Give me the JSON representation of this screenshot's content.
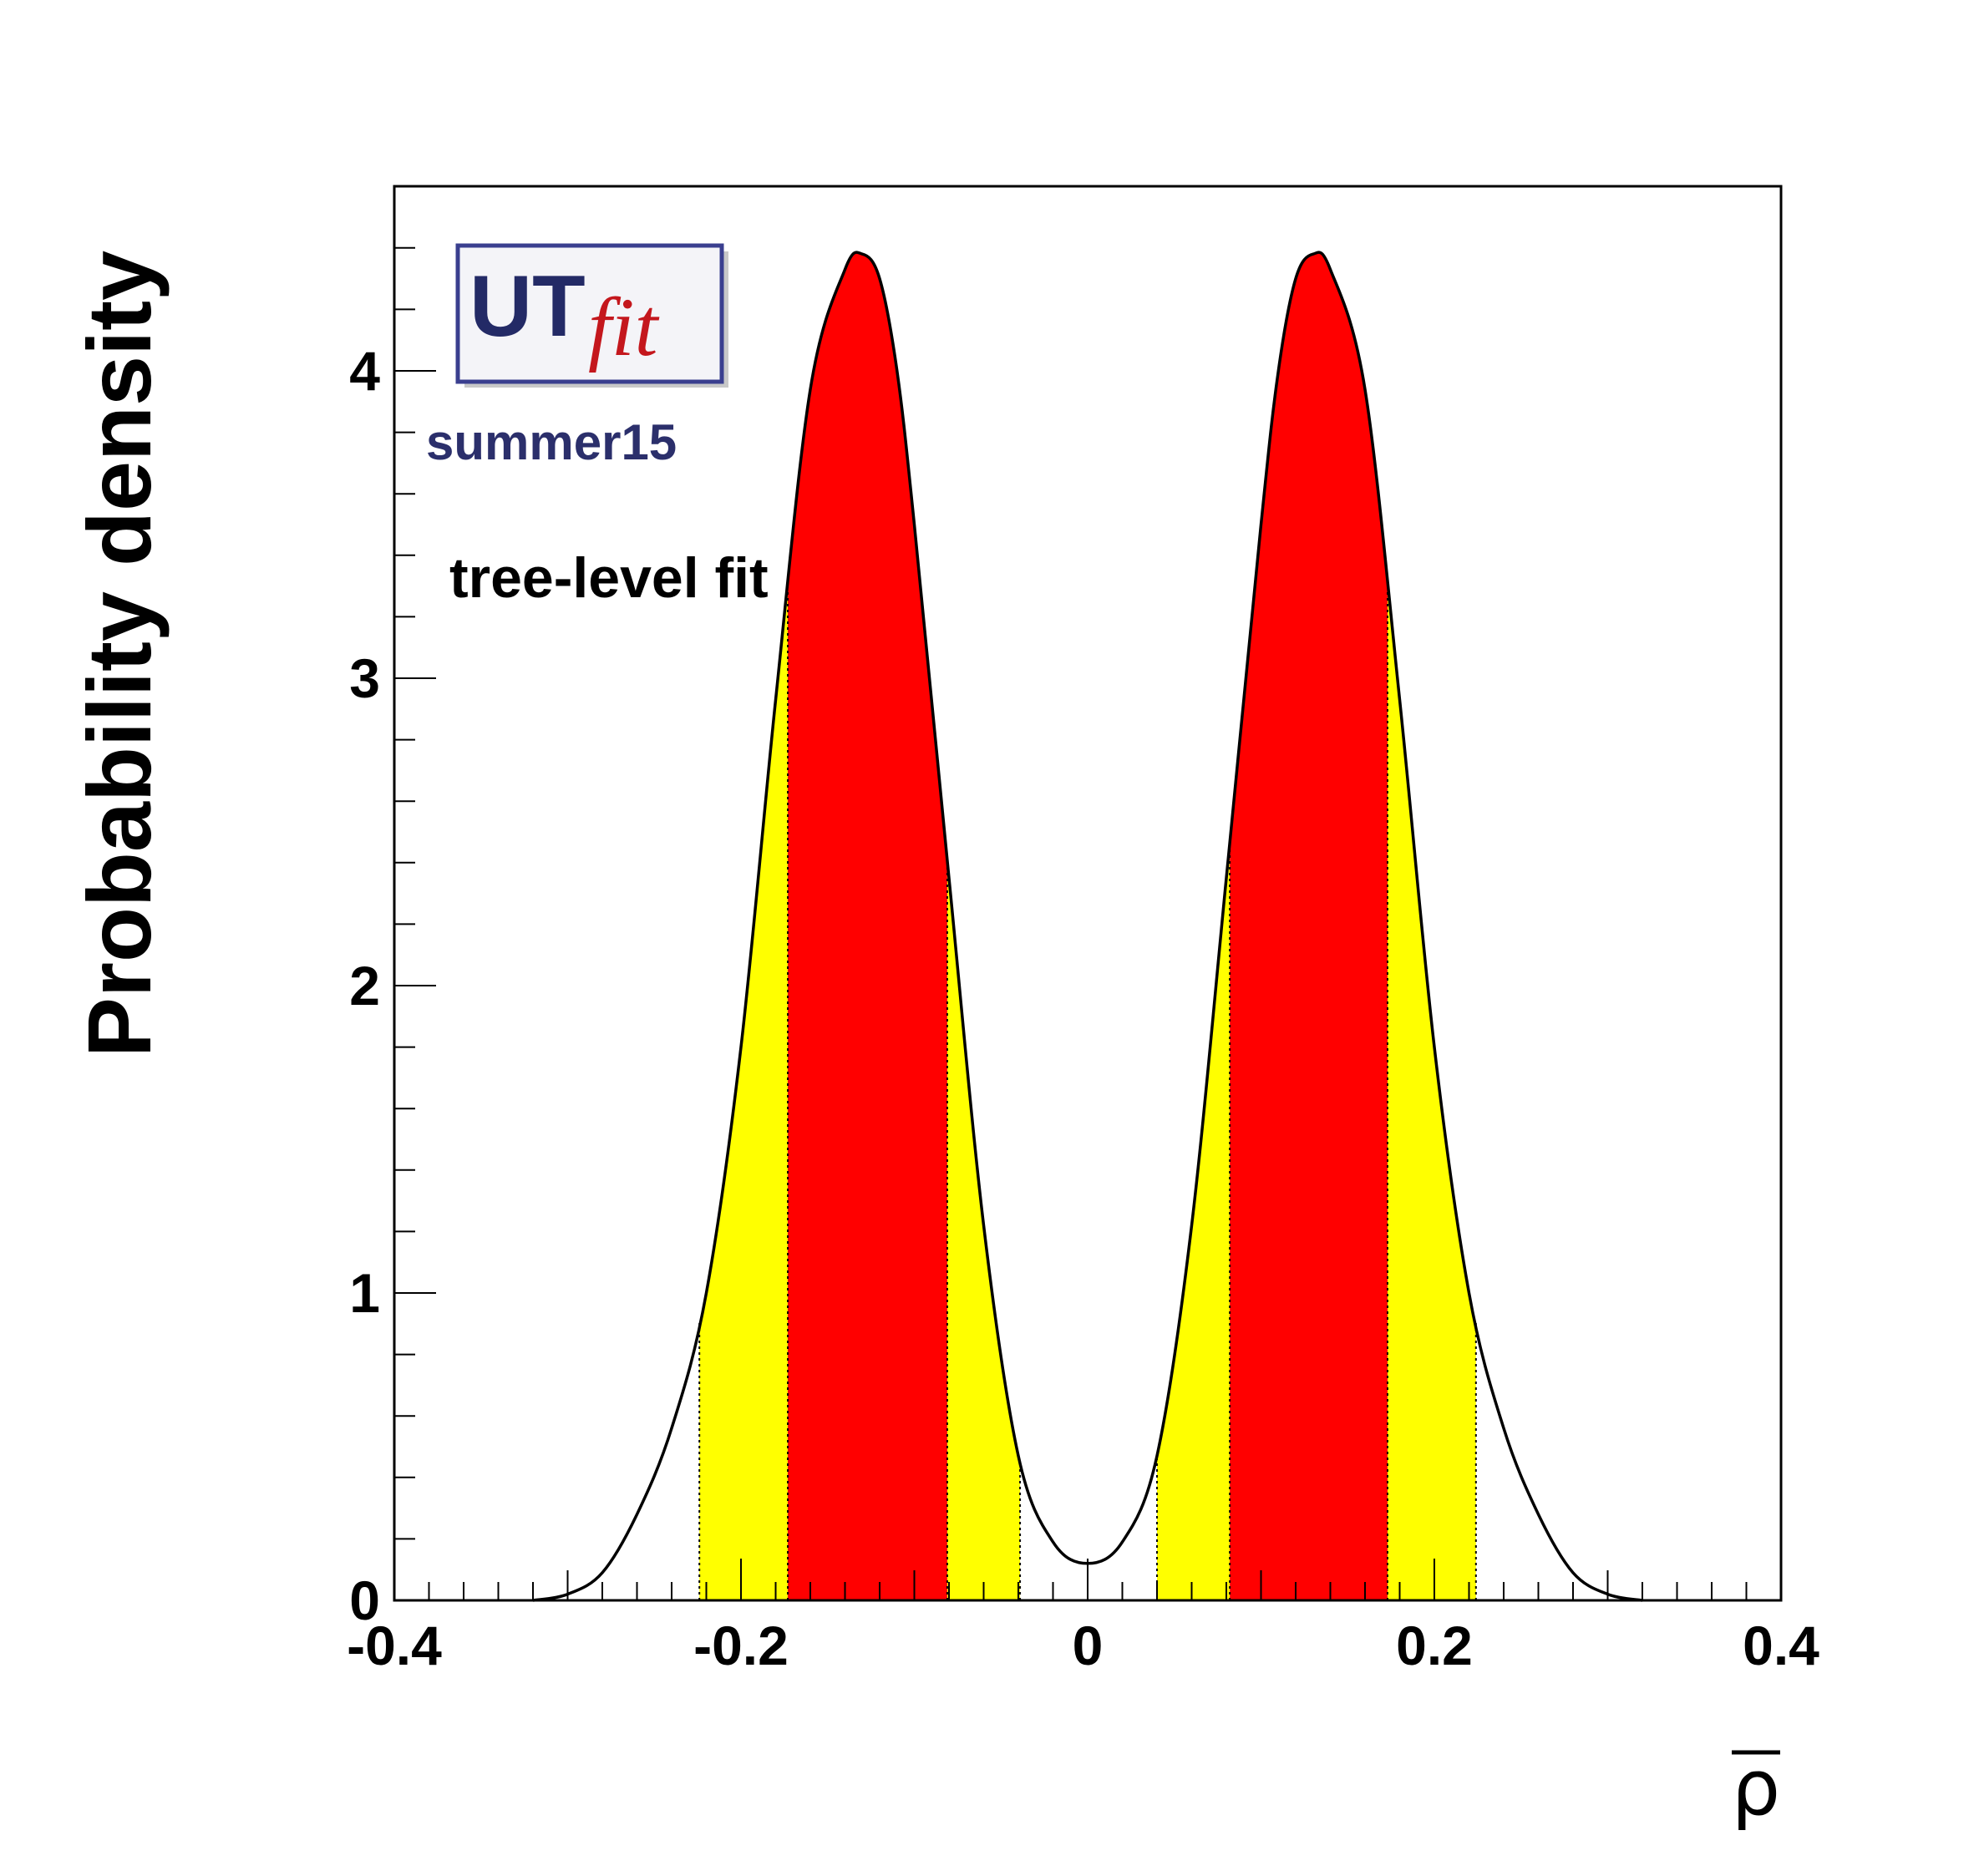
{
  "chart_data": {
    "type": "area",
    "title": "",
    "xlabel": "ρ",
    "ylabel": "Probability density",
    "xlim": [
      -0.4,
      0.4
    ],
    "ylim": [
      0,
      4.6
    ],
    "xticks": [
      -0.4,
      -0.2,
      0,
      0.2,
      0.4
    ],
    "xtick_labels": [
      "-0.4",
      "-0.2",
      "0",
      "0.2",
      "0.4"
    ],
    "yticks": [
      0,
      1,
      2,
      3,
      4
    ],
    "ytick_labels": [
      "0",
      "1",
      "2",
      "3",
      "4"
    ],
    "grid": false,
    "series": [
      {
        "x": [
          -0.32,
          -0.3,
          -0.28,
          -0.26,
          -0.24,
          -0.22,
          -0.2,
          -0.18,
          -0.16,
          -0.14,
          -0.13,
          -0.12,
          -0.11,
          -0.1,
          -0.08,
          -0.06,
          -0.04,
          -0.02,
          0.0,
          0.02,
          0.04,
          0.06,
          0.08,
          0.1,
          0.11,
          0.12,
          0.13,
          0.14,
          0.16,
          0.18,
          0.2,
          0.22,
          0.24,
          0.26,
          0.28,
          0.3,
          0.32
        ],
        "y": [
          0.0,
          0.02,
          0.09,
          0.28,
          0.56,
          1.0,
          1.8,
          2.93,
          3.94,
          4.33,
          4.38,
          4.3,
          4.0,
          3.5,
          2.35,
          1.22,
          0.47,
          0.19,
          0.12,
          0.19,
          0.47,
          1.22,
          2.35,
          3.5,
          4.0,
          4.3,
          4.38,
          4.33,
          3.94,
          2.93,
          1.8,
          1.0,
          0.56,
          0.28,
          0.09,
          0.02,
          0.0
        ]
      }
    ],
    "bands": [
      {
        "from": -0.224,
        "to": -0.173,
        "color": "#ffff00"
      },
      {
        "from": -0.173,
        "to": -0.081,
        "color": "#ff0000"
      },
      {
        "from": -0.081,
        "to": -0.039,
        "color": "#ffff00"
      },
      {
        "from": 0.04,
        "to": 0.082,
        "color": "#ffff00"
      },
      {
        "from": 0.082,
        "to": 0.173,
        "color": "#ff0000"
      },
      {
        "from": 0.173,
        "to": 0.224,
        "color": "#ffff00"
      }
    ],
    "annotations": [
      "tree-level fit"
    ]
  },
  "logo": {
    "ut": "UT",
    "fit": "fit",
    "tag": "summer15"
  },
  "colors": {
    "inner_band": "#ff0000",
    "outer_band": "#ffff00",
    "curve": "#000000"
  }
}
